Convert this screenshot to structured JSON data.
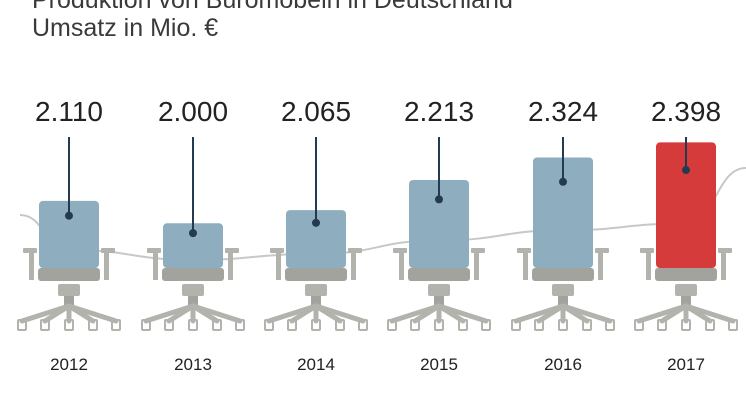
{
  "header": {
    "title": "Produktion von Büromöbeln in Deutschland",
    "subtitle": "Umsatz in Mio. €"
  },
  "colors": {
    "bar": "#8eaebf",
    "highlight": "#d63b3b",
    "chair": "#b3b3ad",
    "chair_dark": "#a3a39e",
    "trend": "#c8c8c8",
    "pin": "#233a50"
  },
  "chart_data": {
    "type": "bar",
    "categories": [
      "2012",
      "2013",
      "2014",
      "2015",
      "2016",
      "2017"
    ],
    "values": [
      2110,
      2000,
      2065,
      2213,
      2324,
      2398
    ],
    "value_labels": [
      "2.110",
      "2.000",
      "2.065",
      "2.213",
      "2.324",
      "2.398"
    ],
    "highlight_index": 5,
    "title": "Produktion von Büromöbeln in Deutschland",
    "subtitle": "Umsatz in Mio. €",
    "ylim": [
      1780,
      2400
    ],
    "grid": false,
    "trend_line": true
  }
}
